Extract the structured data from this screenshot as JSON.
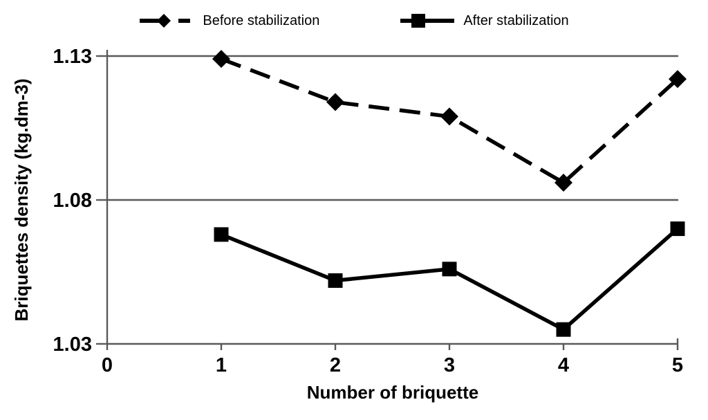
{
  "chart_data": {
    "type": "line",
    "title": "",
    "xlabel": "Number of briquette",
    "ylabel": "Briquettes density (kg.dm-3)",
    "x": [
      1,
      2,
      3,
      4,
      5
    ],
    "series": [
      {
        "name": "Before stabilization",
        "values": [
          1.129,
          1.114,
          1.109,
          1.086,
          1.122
        ],
        "marker": "diamond",
        "line_style": "dashed",
        "color": "#000000"
      },
      {
        "name": "After stabilization",
        "values": [
          1.068,
          1.052,
          1.056,
          1.035,
          1.07
        ],
        "marker": "square",
        "line_style": "solid",
        "color": "#000000"
      }
    ],
    "xlim": [
      0,
      5
    ],
    "ylim": [
      1.03,
      1.13
    ],
    "xticks": [
      "0",
      "1",
      "2",
      "3",
      "4",
      "5"
    ],
    "xtick_values": [
      0,
      1,
      2,
      3,
      4,
      5
    ],
    "yticks": [
      "1.03",
      "1.08",
      "1.13"
    ],
    "ytick_values": [
      1.03,
      1.08,
      1.13
    ],
    "grid": "horizontal-only",
    "legend_position": "top-center",
    "gridline_color": "#595959",
    "axis_color": "#595959",
    "text_color": "#000000",
    "background_color": "#ffffff"
  },
  "legend": {
    "items": [
      {
        "label": "Before stabilization"
      },
      {
        "label": "After stabilization"
      }
    ]
  }
}
